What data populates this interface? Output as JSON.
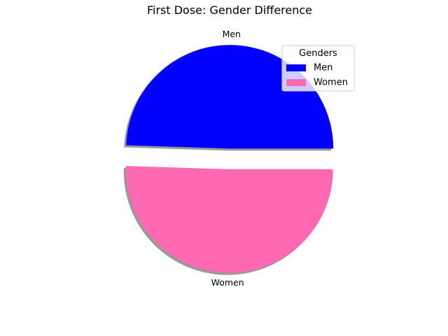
{
  "chart_data": {
    "type": "pie",
    "title": "First Dose: Gender Difference",
    "categories": [
      "Men",
      "Women"
    ],
    "values": [
      49.5,
      50.5
    ],
    "colors": [
      "#0000ff",
      "#ff69b4"
    ],
    "explode": [
      0.1,
      0.1
    ],
    "shadow": true,
    "start_angle_deg": 0,
    "legend": {
      "title": "Genders",
      "placement": "upper-right",
      "entries": [
        "Men",
        "Women"
      ]
    }
  }
}
